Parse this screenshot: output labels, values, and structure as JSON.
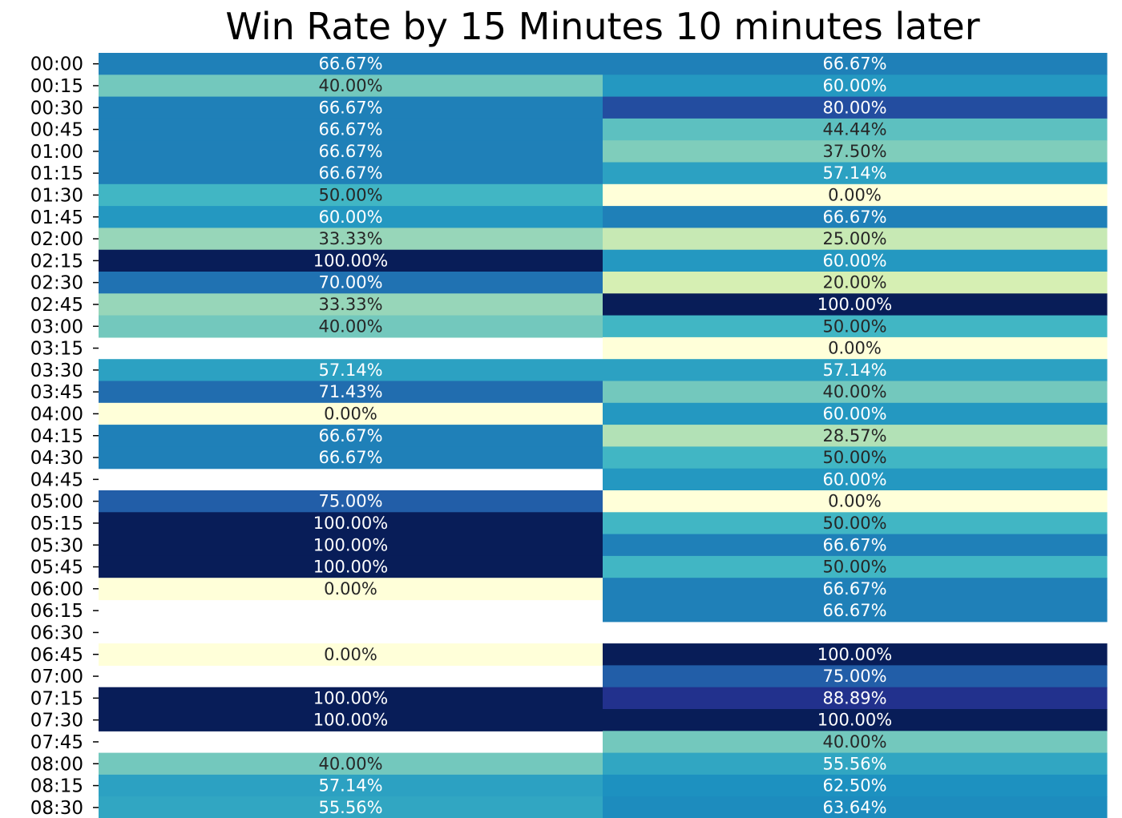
{
  "chart_data": {
    "type": "heatmap",
    "title": "Win Rate by 15 Minutes 10 minutes later",
    "colormap": "YlGnBu",
    "vmin": 0,
    "vmax": 100,
    "y_categories": [
      "00:00",
      "00:15",
      "00:30",
      "00:45",
      "01:00",
      "01:15",
      "01:30",
      "01:45",
      "02:00",
      "02:15",
      "02:30",
      "02:45",
      "03:00",
      "03:15",
      "03:30",
      "03:45",
      "04:00",
      "04:15",
      "04:30",
      "04:45",
      "05:00",
      "05:15",
      "05:30",
      "05:45",
      "06:00",
      "06:15",
      "06:30",
      "06:45",
      "07:00",
      "07:15",
      "07:30",
      "07:45",
      "08:00",
      "08:15",
      "08:30"
    ],
    "columns": [
      {
        "values": [
          66.67,
          40.0,
          66.67,
          66.67,
          66.67,
          66.67,
          50.0,
          60.0,
          33.33,
          100.0,
          70.0,
          33.33,
          40.0,
          null,
          57.14,
          71.43,
          0.0,
          66.67,
          66.67,
          null,
          75.0,
          100.0,
          100.0,
          100.0,
          0.0,
          null,
          null,
          0.0,
          null,
          100.0,
          100.0,
          null,
          40.0,
          57.14,
          55.56
        ],
        "labels": [
          "66.67%",
          "40.00%",
          "66.67%",
          "66.67%",
          "66.67%",
          "66.67%",
          "50.00%",
          "60.00%",
          "33.33%",
          "100.00%",
          "70.00%",
          "33.33%",
          "40.00%",
          "",
          "57.14%",
          "71.43%",
          "0.00%",
          "66.67%",
          "66.67%",
          "",
          "75.00%",
          "100.00%",
          "100.00%",
          "100.00%",
          "0.00%",
          "",
          "",
          "0.00%",
          "",
          "100.00%",
          "100.00%",
          "",
          "40.00%",
          "57.14%",
          "55.56%"
        ]
      },
      {
        "values": [
          66.67,
          60.0,
          80.0,
          44.44,
          37.5,
          57.14,
          0.0,
          66.67,
          25.0,
          60.0,
          20.0,
          100.0,
          50.0,
          0.0,
          57.14,
          40.0,
          60.0,
          28.57,
          50.0,
          60.0,
          0.0,
          50.0,
          66.67,
          50.0,
          66.67,
          66.67,
          null,
          100.0,
          75.0,
          88.89,
          100.0,
          40.0,
          55.56,
          62.5,
          63.64
        ],
        "labels": [
          "66.67%",
          "60.00%",
          "80.00%",
          "44.44%",
          "37.50%",
          "57.14%",
          "0.00%",
          "66.67%",
          "25.00%",
          "60.00%",
          "20.00%",
          "100.00%",
          "50.00%",
          "0.00%",
          "57.14%",
          "40.00%",
          "60.00%",
          "28.57%",
          "50.00%",
          "60.00%",
          "0.00%",
          "50.00%",
          "66.67%",
          "50.00%",
          "66.67%",
          "66.67%",
          "",
          "100.00%",
          "75.00%",
          "88.89%",
          "100.00%",
          "40.00%",
          "55.56%",
          "62.50%",
          "63.64%"
        ]
      }
    ]
  }
}
